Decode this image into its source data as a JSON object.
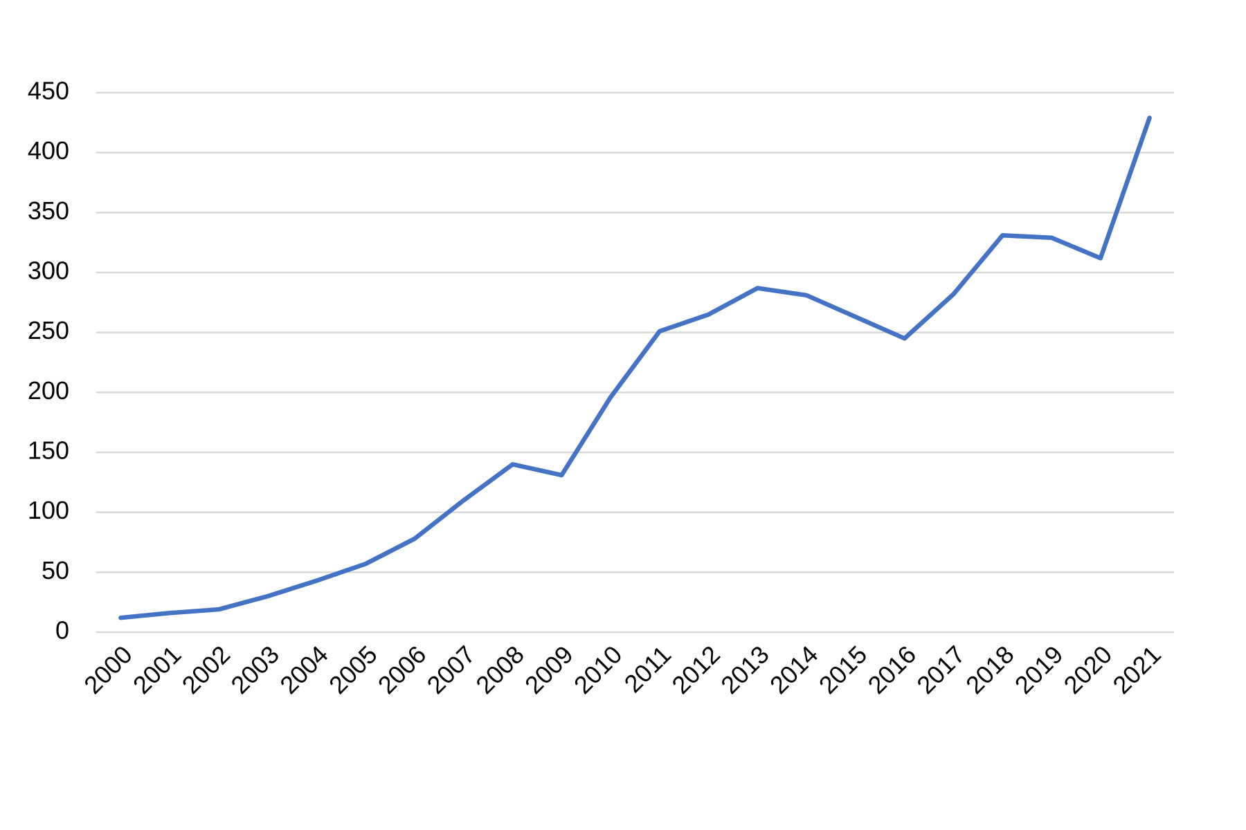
{
  "chart_data": {
    "type": "line",
    "categories": [
      "2000",
      "2001",
      "2002",
      "2003",
      "2004",
      "2005",
      "2006",
      "2007",
      "2008",
      "2009",
      "2010",
      "2011",
      "2012",
      "2013",
      "2014",
      "2015",
      "2016",
      "2017",
      "2018",
      "2019",
      "2020",
      "2021"
    ],
    "series": [
      {
        "color": "#4472c4",
        "values": [
          12,
          16,
          19,
          30,
          43,
          57,
          78,
          110,
          140,
          131,
          196,
          251,
          265,
          287,
          281,
          263,
          245,
          282,
          331,
          329,
          312,
          429
        ]
      }
    ],
    "ylim": [
      0,
      450
    ],
    "yticks": [
      0,
      50,
      100,
      150,
      200,
      250,
      300,
      350,
      400,
      450
    ],
    "grid": true
  }
}
